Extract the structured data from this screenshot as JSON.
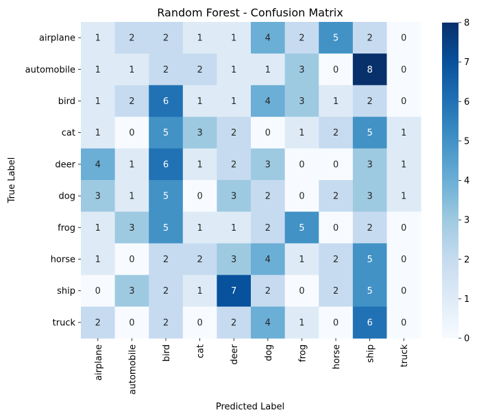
{
  "chart_data": {
    "type": "heatmap",
    "title": "Random Forest - Confusion Matrix",
    "xlabel": "Predicted Label",
    "ylabel": "True Label",
    "x_categories": [
      "airplane",
      "automobile",
      "bird",
      "cat",
      "deer",
      "dog",
      "frog",
      "horse",
      "ship",
      "truck"
    ],
    "y_categories": [
      "airplane",
      "automobile",
      "bird",
      "cat",
      "deer",
      "dog",
      "frog",
      "horse",
      "ship",
      "truck"
    ],
    "values": [
      [
        1,
        2,
        2,
        1,
        1,
        4,
        2,
        5,
        2,
        0
      ],
      [
        1,
        1,
        2,
        2,
        1,
        1,
        3,
        0,
        8,
        0
      ],
      [
        1,
        2,
        6,
        1,
        1,
        4,
        3,
        1,
        2,
        0
      ],
      [
        1,
        0,
        5,
        3,
        2,
        0,
        1,
        2,
        5,
        1
      ],
      [
        4,
        1,
        6,
        1,
        2,
        3,
        0,
        0,
        3,
        1
      ],
      [
        3,
        1,
        5,
        0,
        3,
        2,
        0,
        2,
        3,
        1
      ],
      [
        1,
        3,
        5,
        1,
        1,
        2,
        5,
        0,
        2,
        0
      ],
      [
        1,
        0,
        2,
        2,
        3,
        4,
        1,
        2,
        5,
        0
      ],
      [
        0,
        3,
        2,
        1,
        7,
        2,
        0,
        2,
        5,
        0
      ],
      [
        2,
        0,
        2,
        0,
        2,
        4,
        1,
        0,
        6,
        0
      ]
    ],
    "colorbar": {
      "min": 0,
      "max": 8,
      "ticks": [
        0,
        1,
        2,
        3,
        4,
        5,
        6,
        7,
        8
      ]
    },
    "colormap": "Blues",
    "annotations": true,
    "grid": false
  }
}
